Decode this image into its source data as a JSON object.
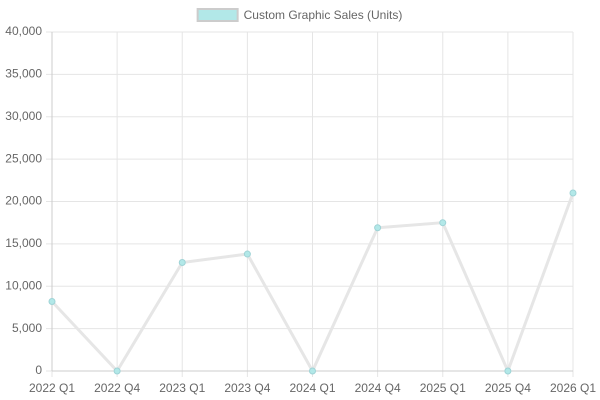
{
  "chart_data": {
    "type": "line",
    "categories": [
      "2022 Q1",
      "2022 Q4",
      "2023 Q1",
      "2023 Q4",
      "2024 Q1",
      "2024 Q4",
      "2025 Q1",
      "2025 Q4",
      "2026 Q1"
    ],
    "series": [
      {
        "name": "Custom Graphic Sales (Units)",
        "color": "#b2e8e8",
        "line_color": "#e6e6e6",
        "values": [
          8200,
          0,
          12800,
          13800,
          0,
          16900,
          17500,
          0,
          21000
        ]
      }
    ],
    "ylim": [
      0,
      40000
    ],
    "yticks": [
      0,
      {
        "value": 5000,
        "label": "5,000"
      },
      {
        "value": 10000,
        "label": "10,000"
      },
      {
        "value": 15000,
        "label": "15,000"
      },
      {
        "value": 20000,
        "label": "20,000"
      },
      {
        "value": 25000,
        "label": "25,000"
      },
      {
        "value": 30000,
        "label": "30,000"
      },
      {
        "value": 35000,
        "label": "35,000"
      },
      {
        "value": 40000,
        "label": "40,000"
      }
    ],
    "grid": true,
    "legend": "top"
  }
}
